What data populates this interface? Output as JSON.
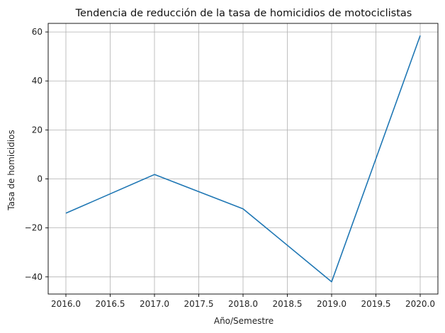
{
  "chart_data": {
    "type": "line",
    "title": "Tendencia de reducción de la tasa de homicidios de motociclistas",
    "xlabel": "Año/Semestre",
    "ylabel": "Tasa de homicidios",
    "x": [
      2016,
      2017,
      2018,
      2019,
      2020
    ],
    "series": [
      {
        "values": [
          -14.0,
          1.8,
          -12.2,
          -42.0,
          58.5
        ],
        "color": "#1f77b4"
      }
    ],
    "xlim": [
      2015.8,
      2020.2
    ],
    "ylim": [
      -47,
      63.5
    ],
    "xticks": [
      2016.0,
      2016.5,
      2017.0,
      2017.5,
      2018.0,
      2018.5,
      2019.0,
      2019.5,
      2020.0
    ],
    "xtick_labels": [
      "2016.0",
      "2016.5",
      "2017.0",
      "2017.5",
      "2018.0",
      "2018.5",
      "2019.0",
      "2019.5",
      "2020.0"
    ],
    "yticks": [
      -40,
      -20,
      0,
      20,
      40,
      60
    ],
    "ytick_labels": [
      "−40",
      "−20",
      "0",
      "20",
      "40",
      "60"
    ],
    "grid": true,
    "legend": "none"
  }
}
